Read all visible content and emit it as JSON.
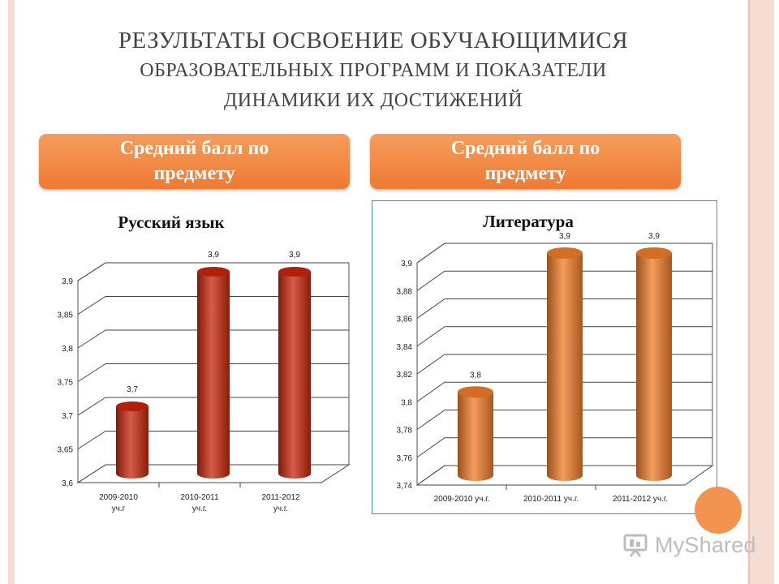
{
  "slide": {
    "title_lines": [
      "Результаты освоение обучающимися",
      "образовательных программ и показатели",
      "динамики их достижений"
    ],
    "header_left": "Средний балл по предмету",
    "header_right": "Средний балл по предмету",
    "watermark": "MyShared"
  },
  "colors": {
    "accent_orange": "#f08a3e",
    "bar_red": "#c8260c",
    "bar_orange": "#f07c28",
    "frame_pink": "#f6dcd2"
  },
  "chart_data": [
    {
      "type": "bar",
      "title": "Русский язык",
      "categories": [
        "2009-2010 уч.г",
        "2010-2011 уч.г.",
        "2011-2012 уч.г."
      ],
      "values": [
        3.7,
        3.9,
        3.9
      ],
      "value_labels": [
        "3,7",
        "3,9",
        "3,9"
      ],
      "yticks": [
        "3,6",
        "3,65",
        "3,7",
        "3,75",
        "3,8",
        "3,85",
        "3,9"
      ],
      "ylim": [
        3.6,
        3.9
      ],
      "grid": true,
      "style": "3d-cylinder",
      "color": "#c8260c"
    },
    {
      "type": "bar",
      "title": "Литература",
      "categories": [
        "2009-2010 уч.г.",
        "2010-2011 уч.г.",
        "2011-2012 уч.г."
      ],
      "values": [
        3.8,
        3.9,
        3.9
      ],
      "value_labels": [
        "3,8",
        "3,9",
        "3,9"
      ],
      "yticks": [
        "3,74",
        "3,76",
        "3,78",
        "3,8",
        "3,82",
        "3,84",
        "3,86",
        "3,88",
        "3,9"
      ],
      "ylim": [
        3.74,
        3.9
      ],
      "grid": true,
      "style": "3d-cylinder",
      "color": "#f07c28"
    }
  ]
}
